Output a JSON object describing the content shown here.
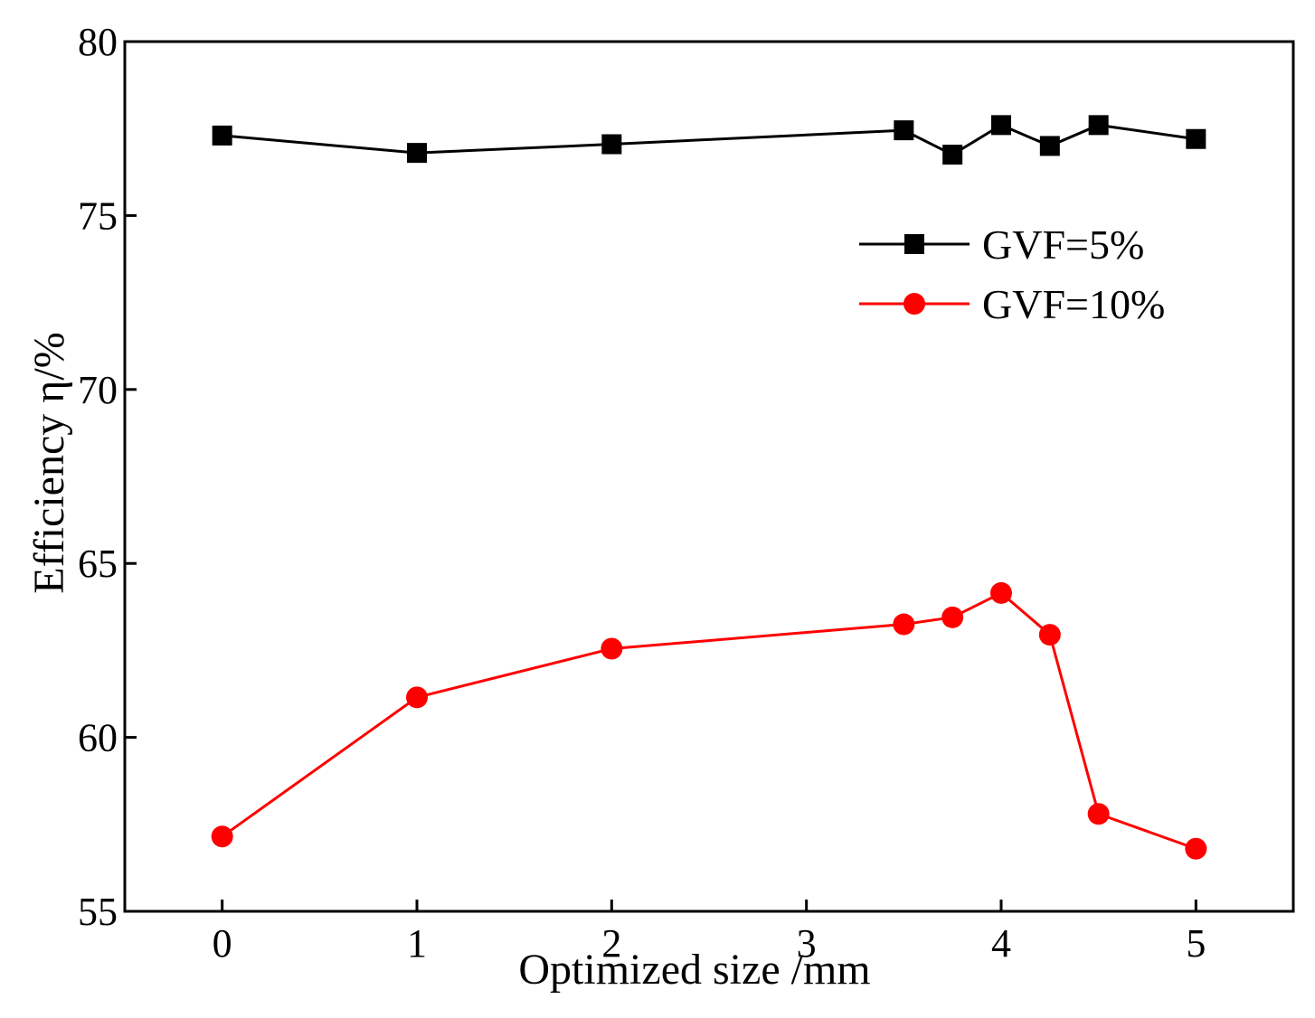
{
  "chart_data": {
    "type": "line",
    "xlabel": "Optimized size /mm",
    "ylabel": "Efficiency η/%",
    "xlim": [
      -0.5,
      5.5
    ],
    "ylim": [
      55,
      80
    ],
    "x_ticks": [
      0,
      1,
      2,
      3,
      4,
      5
    ],
    "y_ticks": [
      55,
      60,
      65,
      70,
      75,
      80
    ],
    "grid": false,
    "legend_position": "upper-right",
    "series": [
      {
        "name": "GVF=5%",
        "color": "#000000",
        "marker": "square",
        "x": [
          0,
          1,
          2,
          3.5,
          3.75,
          4,
          4.25,
          4.5,
          5
        ],
        "values": [
          77.3,
          76.8,
          77.05,
          77.45,
          76.75,
          77.6,
          77.0,
          77.6,
          77.2
        ]
      },
      {
        "name": "GVF=10%",
        "color": "#ff0000",
        "marker": "circle",
        "x": [
          0,
          1,
          2,
          3.5,
          3.75,
          4,
          4.25,
          4.5,
          5
        ],
        "values": [
          57.15,
          61.15,
          62.55,
          63.25,
          63.45,
          64.15,
          62.95,
          57.8,
          56.8
        ]
      }
    ]
  }
}
